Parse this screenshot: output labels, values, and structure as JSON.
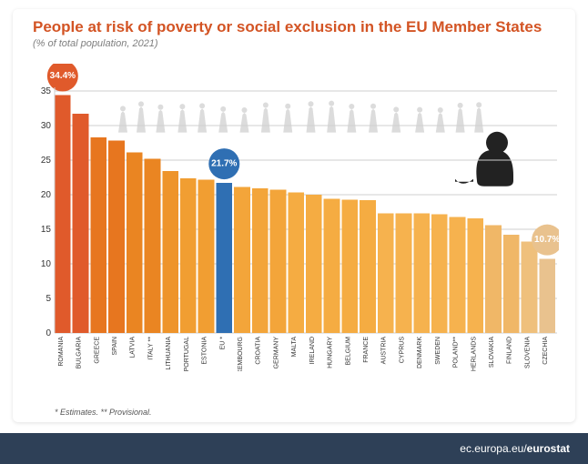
{
  "title": "People at risk of poverty or social exclusion in the EU Member States",
  "subtitle": "(% of total population, 2021)",
  "footnote": "* Estimates. ** Provisional.",
  "footer_host": "ec.europa.eu/",
  "footer_name": "eurostat",
  "chart": {
    "type": "bar",
    "ylim": [
      0,
      35
    ],
    "ytick_step": 5,
    "grid_color": "#cfcfcf",
    "background_color": "#ffffff",
    "title_color": "#d35424",
    "title_fontsize": 17,
    "subtitle_color": "#7e7e7e",
    "xlabel_fontsize": 7,
    "ylabel_fontsize": 10,
    "bar_gap": 2,
    "bars": [
      {
        "label": "ROMANIA",
        "value": 34.4,
        "color": "#e05a2b"
      },
      {
        "label": "BULGARIA",
        "value": 31.7,
        "color": "#e05a2b"
      },
      {
        "label": "GREECE",
        "value": 28.3,
        "color": "#e7761f"
      },
      {
        "label": "SPAIN",
        "value": 27.8,
        "color": "#e7761f"
      },
      {
        "label": "LATVIA",
        "value": 26.1,
        "color": "#ea8522"
      },
      {
        "label": "ITALY **",
        "value": 25.2,
        "color": "#ea8522"
      },
      {
        "label": "LITHUANIA",
        "value": 23.4,
        "color": "#ee942b"
      },
      {
        "label": "PORTUGAL",
        "value": 22.4,
        "color": "#f19e32"
      },
      {
        "label": "ESTONIA",
        "value": 22.2,
        "color": "#f19e32"
      },
      {
        "label": "EU *",
        "value": 21.7,
        "color": "#2f6fb3"
      },
      {
        "label": "LUXEMBOURG",
        "value": 21.1,
        "color": "#f3a53a"
      },
      {
        "label": "CROATIA",
        "value": 20.9,
        "color": "#f3a53a"
      },
      {
        "label": "GERMANY",
        "value": 20.7,
        "color": "#f3a53a"
      },
      {
        "label": "MALTA",
        "value": 20.3,
        "color": "#f5ac42"
      },
      {
        "label": "IRELAND",
        "value": 20.0,
        "color": "#f5ac42"
      },
      {
        "label": "HUNGARY",
        "value": 19.4,
        "color": "#f5ac42"
      },
      {
        "label": "BELGIUM",
        "value": 19.3,
        "color": "#f5ac42"
      },
      {
        "label": "FRANCE",
        "value": 19.2,
        "color": "#f5ac42"
      },
      {
        "label": "AUSTRIA",
        "value": 17.3,
        "color": "#f6b24e"
      },
      {
        "label": "CYPRUS",
        "value": 17.3,
        "color": "#f6b24e"
      },
      {
        "label": "DENMARK",
        "value": 17.3,
        "color": "#f6b24e"
      },
      {
        "label": "SWEDEN",
        "value": 17.2,
        "color": "#f6b24e"
      },
      {
        "label": "POLAND**",
        "value": 16.8,
        "color": "#f6b24e"
      },
      {
        "label": "NETHERLANDS",
        "value": 16.6,
        "color": "#f6b24e"
      },
      {
        "label": "SLOVAKIA",
        "value": 15.6,
        "color": "#f0b767"
      },
      {
        "label": "FINLAND",
        "value": 14.2,
        "color": "#f0b767"
      },
      {
        "label": "SLOVENIA",
        "value": 13.2,
        "color": "#efc07c"
      },
      {
        "label": "CZECHIA",
        "value": 10.7,
        "color": "#e9c28e"
      }
    ],
    "badges": [
      {
        "bar_index": 0,
        "label": "34.4%",
        "color": "#e05a2b",
        "text_color": "#ffffff",
        "radius": 17
      },
      {
        "bar_index": 9,
        "label": "21.7%",
        "color": "#2f6fb3",
        "text_color": "#ffffff",
        "radius": 17
      },
      {
        "bar_index": 27,
        "label": "10.7%",
        "color": "#e9c28e",
        "text_color": "#ffffff",
        "radius": 17
      }
    ]
  }
}
